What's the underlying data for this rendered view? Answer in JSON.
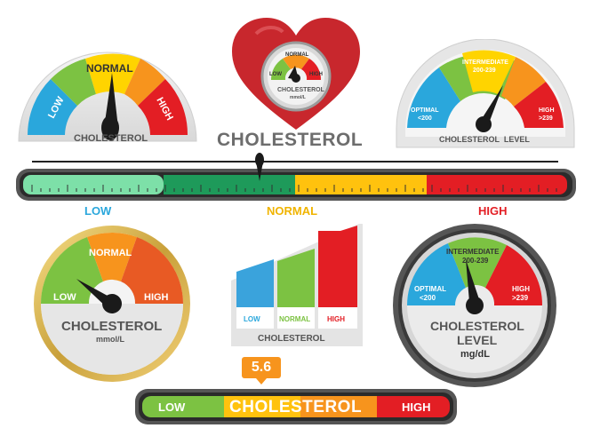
{
  "title": "CHOLESTEROL",
  "colors": {
    "low_blue": "#2aa7dc",
    "green": "#7cc242",
    "yellow": "#ffd400",
    "orange": "#f7941d",
    "red": "#e31e24",
    "dark": "#2b2b2b",
    "gray_text": "#666666",
    "heart": "#c8272d"
  },
  "gauge1": {
    "segments": [
      "LOW",
      "NORMAL",
      "HIGH"
    ],
    "label": "CHOLESTEROL",
    "needle_level": 0.48
  },
  "heart_gauge": {
    "segments": [
      "LOW",
      "NORMAL",
      "HIGH"
    ],
    "label": "CHOLESTEROL",
    "unit": "mmol/L",
    "icon": "heart-icon"
  },
  "gauge3": {
    "segments": [
      "OPTIMAL",
      "<200",
      "INTERMEDIATE",
      "200-239",
      "HIGH",
      ">239"
    ],
    "label": "CHOLESTEROL  LEVEL"
  },
  "bar_scale": {
    "labels": [
      "LOW",
      "NORMAL",
      "HIGH"
    ],
    "marker_level": 0.42
  },
  "gauge4": {
    "segments": [
      "LOW",
      "NORMAL",
      "HIGH"
    ],
    "label": "CHOLESTEROL",
    "unit": "mmol/L"
  },
  "bars_chart": {
    "labels": [
      "LOW",
      "NORMAL",
      "HIGH"
    ],
    "label": "CHOLESTEROL"
  },
  "gauge5": {
    "segments": [
      "OPTIMAL",
      "<200",
      "INTERMEDIATE",
      "200-239",
      "HIGH",
      ">239"
    ],
    "label1": "CHOLESTEROL",
    "label2": "LEVEL",
    "unit": "mg/dL"
  },
  "bottom_bar": {
    "value": "5.6",
    "low": "LOW",
    "center": "CHOLESTEROL",
    "high": "HIGH"
  }
}
